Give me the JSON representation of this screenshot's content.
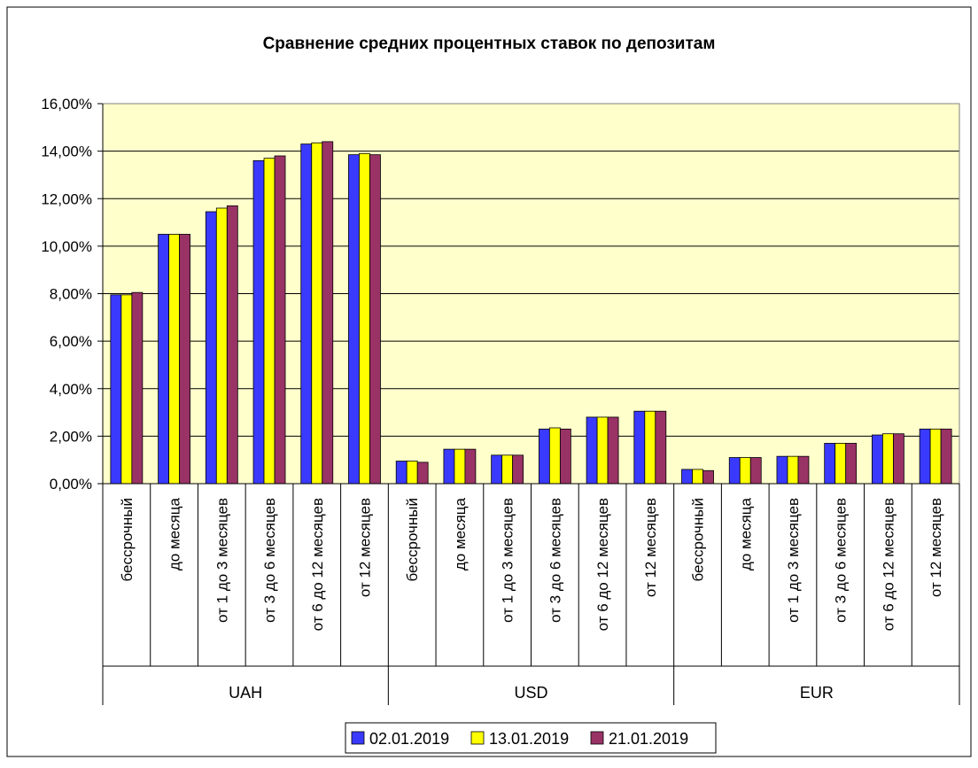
{
  "chart_data": {
    "type": "bar",
    "title": "Сравнение средних процентных ставок по депозитам",
    "xlabel": "",
    "ylabel": "",
    "ylim": [
      0,
      16
    ],
    "y_tick_labels": [
      "0,00%",
      "2,00%",
      "4,00%",
      "6,00%",
      "8,00%",
      "10,00%",
      "12,00%",
      "14,00%",
      "16,00%"
    ],
    "y_ticks": [
      0,
      2,
      4,
      6,
      8,
      10,
      12,
      14,
      16
    ],
    "grid": true,
    "legend_position": "bottom",
    "groups": [
      {
        "label": "UAH",
        "categories": [
          "бессрочный",
          "до месяца",
          "от 1 до 3 месяцев",
          "от 3 до 6 месяцев",
          "от 6 до 12 месяцев",
          "от 12 месяцев"
        ]
      },
      {
        "label": "USD",
        "categories": [
          "бессрочный",
          "до месяца",
          "от 1 до 3 месяцев",
          "от 3 до 6 месяцев",
          "от 6 до 12 месяцев",
          "от 12 месяцев"
        ]
      },
      {
        "label": "EUR",
        "categories": [
          "бессрочный",
          "до месяца",
          "от 1 до 3 месяцев",
          "от 3 до 6 месяцев",
          "от 6 до 12 месяцев",
          "от 12 месяцев"
        ]
      }
    ],
    "series": [
      {
        "name": "02.01.2019",
        "color": "#3a3aff",
        "values": [
          7.95,
          10.5,
          11.45,
          13.6,
          14.3,
          13.85,
          0.95,
          1.45,
          1.2,
          2.3,
          2.8,
          3.05,
          0.6,
          1.1,
          1.15,
          1.7,
          2.05,
          2.3
        ]
      },
      {
        "name": "13.01.2019",
        "color": "#ffff00",
        "values": [
          7.95,
          10.5,
          11.6,
          13.7,
          14.35,
          13.9,
          0.95,
          1.45,
          1.2,
          2.35,
          2.8,
          3.05,
          0.6,
          1.1,
          1.15,
          1.7,
          2.1,
          2.3
        ]
      },
      {
        "name": "21.01.2019",
        "color": "#993366",
        "values": [
          8.05,
          10.5,
          11.7,
          13.8,
          14.4,
          13.85,
          0.9,
          1.45,
          1.2,
          2.3,
          2.8,
          3.05,
          0.55,
          1.1,
          1.15,
          1.7,
          2.1,
          2.3
        ]
      }
    ],
    "plot_background": "#ffffcc"
  }
}
